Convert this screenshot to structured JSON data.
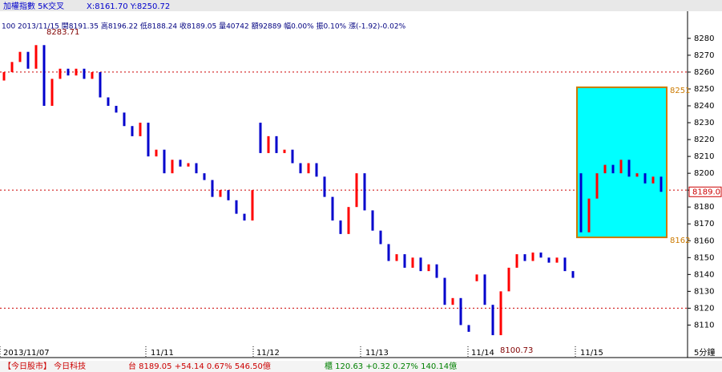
{
  "chart_data": {
    "type": "candlestick",
    "title": "加權指數 5K交叉",
    "cursor": "X:8161.70 Y:8250.72",
    "info": "100 2013/11/15 開8191.35 高8196.22 低8188.24 收8189.05 量40742 額92889 幅0.00% 振0.10% 漲(-1.92)-0.02%",
    "open": [
      8255,
      8260,
      8266,
      8272,
      8262,
      8276,
      8240,
      8256,
      8262,
      8258,
      8262,
      8256,
      8260,
      8245,
      8240,
      8236,
      8228,
      8222,
      8230,
      8210,
      8214,
      8200,
      8208,
      8204,
      8206,
      8200,
      8196,
      8186,
      8190,
      8184,
      8176,
      8172,
      8230,
      8212,
      8222,
      8212,
      8214,
      8206,
      8200,
      8206,
      8198,
      8186,
      8172,
      8164,
      8180,
      8200,
      8178,
      8166,
      8158,
      8148,
      8152,
      8144,
      8150,
      8142,
      8146,
      8138,
      8122,
      8126,
      8110,
      8136,
      8140,
      8122,
      8104,
      8130,
      8144,
      8152,
      8148,
      8153,
      8150,
      8147,
      8150,
      8142,
      8200,
      8165,
      8185,
      8200,
      8205,
      8200,
      8208,
      8198,
      8200,
      8194,
      8198
    ],
    "close": [
      8260,
      8266,
      8272,
      8262,
      8276,
      8240,
      8256,
      8262,
      8258,
      8262,
      8256,
      8260,
      8245,
      8240,
      8236,
      8228,
      8222,
      8230,
      8210,
      8214,
      8200,
      8208,
      8204,
      8206,
      8200,
      8196,
      8186,
      8190,
      8184,
      8176,
      8172,
      8190,
      8212,
      8222,
      8212,
      8214,
      8206,
      8200,
      8206,
      8198,
      8186,
      8172,
      8164,
      8180,
      8200,
      8178,
      8166,
      8158,
      8148,
      8152,
      8144,
      8150,
      8142,
      8146,
      8138,
      8122,
      8126,
      8110,
      8106,
      8140,
      8122,
      8104,
      8130,
      8144,
      8152,
      8148,
      8153,
      8150,
      8147,
      8150,
      8142,
      8138,
      8165,
      8185,
      8200,
      8205,
      8200,
      8208,
      8198,
      8200,
      8194,
      8198,
      8189
    ],
    "up_color": "#ff0000",
    "down_color": "#0000cc",
    "ylim": [
      8095,
      8298
    ],
    "yticks": [
      8110,
      8120,
      8130,
      8140,
      8150,
      8160,
      8170,
      8180,
      8190,
      8200,
      8210,
      8220,
      8230,
      8240,
      8250,
      8260,
      8270,
      8280
    ],
    "x_labels": [
      "2013/11/07",
      "11/11",
      "11/12",
      "11/13",
      "11/14",
      "11/15"
    ],
    "period": "5分鐘",
    "ref_lines": [
      8260,
      8190,
      8120
    ],
    "high_mark": 8283.71,
    "low_mark": 8100.73,
    "box": {
      "top": 8251,
      "bottom": 8162,
      "color": "#00ffff",
      "edge": "#cc7a00"
    },
    "last": {
      "value": 8189.0,
      "label": "8189.0"
    }
  },
  "status_bar": {
    "left": "【今日股市】 今日科技",
    "taiex": "台 8189.05 +54.14 0.67% 546.50億",
    "otc": "櫃 120.63 +0.32 0.27% 140.14億"
  }
}
